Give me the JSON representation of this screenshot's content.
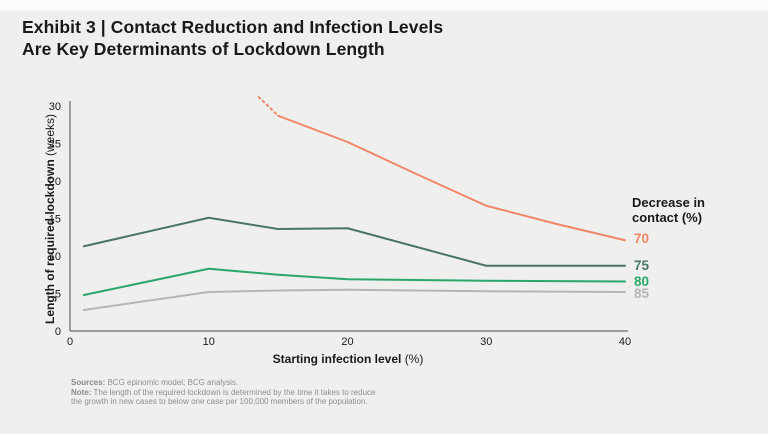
{
  "page": {
    "title_line1": "Exhibit 3 | Contact Reduction and Infection Levels",
    "title_line2": "Are Key Determinants of Lockdown Length"
  },
  "chart_data": {
    "type": "line",
    "xlabel": "Starting infection level",
    "xlabel_unit": "(%)",
    "ylabel": "Length of required lockdown",
    "ylabel_unit": "(weeks)",
    "xlim": [
      0,
      40
    ],
    "ylim": [
      0,
      30
    ],
    "x_ticks": [
      0,
      10,
      20,
      30,
      40
    ],
    "y_ticks": [
      0,
      5,
      10,
      15,
      20,
      25,
      30
    ],
    "grid": false,
    "legend_position": "right",
    "legend_title_line1": "Decrease in",
    "legend_title_line2": "contact (%)",
    "axis_color": "#4a4a4a",
    "tick_color": "#191919",
    "series": [
      {
        "name": "70",
        "color": "#f0876a",
        "dotted_lead": [
          [
            13.6,
            31.2
          ],
          [
            15,
            28.7
          ]
        ],
        "points": [
          [
            15,
            28.7
          ],
          [
            20,
            25.2
          ],
          [
            25,
            20.9
          ],
          [
            30,
            16.7
          ],
          [
            35,
            14.3
          ],
          [
            40,
            12.1
          ]
        ]
      },
      {
        "name": "75",
        "color": "#4a7565",
        "points": [
          [
            1,
            11.3
          ],
          [
            10,
            15.1
          ],
          [
            15,
            13.6
          ],
          [
            20,
            13.7
          ],
          [
            30,
            8.7
          ],
          [
            40,
            8.7
          ]
        ]
      },
      {
        "name": "80",
        "color": "#2ba76c",
        "points": [
          [
            1,
            4.8
          ],
          [
            10,
            8.3
          ],
          [
            15,
            7.5
          ],
          [
            20,
            6.9
          ],
          [
            30,
            6.7
          ],
          [
            40,
            6.6
          ]
        ]
      },
      {
        "name": "85",
        "color": "#b5b5b3",
        "points": [
          [
            1,
            2.8
          ],
          [
            10,
            5.2
          ],
          [
            15,
            5.4
          ],
          [
            20,
            5.5
          ],
          [
            30,
            5.3
          ],
          [
            40,
            5.2
          ]
        ]
      }
    ]
  },
  "footer": {
    "sources_label": "Sources:",
    "sources_text": "BCG epinomic model; BCG analysis.",
    "note_label": "Note:",
    "note_text": "The length of the required lockdown is determined by the time it takes to reduce",
    "note_text2": "the growth in new cases to below one case per 100,000 members of the population."
  }
}
